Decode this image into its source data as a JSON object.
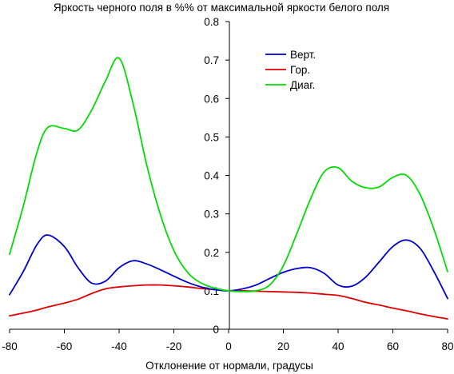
{
  "chart_data": {
    "type": "line",
    "title": "Яркость черного поля в %% от максимальной яркости белого поля",
    "xlabel": "Отклонение от нормали, градусы",
    "ylabel": "",
    "xlim": [
      -80,
      80
    ],
    "ylim": [
      0,
      0.8
    ],
    "xticks": [
      "-80",
      "-60",
      "-40",
      "-20",
      "0",
      "20",
      "40",
      "60",
      "80"
    ],
    "yticks": [
      "0",
      "0.1",
      "0.2",
      "0.3",
      "0.4",
      "0.5",
      "0.6",
      "0.7",
      "0.8"
    ],
    "grid": false,
    "legend_position": "top-right",
    "x": [
      -80,
      -75,
      -70,
      -66,
      -60,
      -55,
      -50,
      -45,
      -40,
      -35,
      -30,
      -25,
      -20,
      -15,
      -10,
      -5,
      0,
      5,
      10,
      15,
      20,
      25,
      30,
      35,
      40,
      45,
      50,
      55,
      60,
      65,
      70,
      75,
      80
    ],
    "series": [
      {
        "name": "Верт.",
        "color": "#0000cc",
        "values": [
          0.09,
          0.15,
          0.22,
          0.245,
          0.215,
          0.16,
          0.12,
          0.125,
          0.16,
          0.178,
          0.17,
          0.155,
          0.138,
          0.122,
          0.11,
          0.103,
          0.1,
          0.105,
          0.115,
          0.132,
          0.148,
          0.158,
          0.16,
          0.145,
          0.115,
          0.112,
          0.135,
          0.175,
          0.215,
          0.232,
          0.21,
          0.15,
          0.08
        ]
      },
      {
        "name": "Гор.",
        "color": "#dd0000",
        "values": [
          0.035,
          0.042,
          0.05,
          0.058,
          0.068,
          0.078,
          0.093,
          0.105,
          0.11,
          0.113,
          0.115,
          0.115,
          0.113,
          0.11,
          0.106,
          0.103,
          0.1,
          0.1,
          0.099,
          0.098,
          0.097,
          0.096,
          0.094,
          0.091,
          0.088,
          0.08,
          0.07,
          0.063,
          0.055,
          0.048,
          0.04,
          0.033,
          0.027
        ]
      },
      {
        "name": "Диаг.",
        "color": "#00dd00",
        "values": [
          0.195,
          0.32,
          0.46,
          0.525,
          0.522,
          0.518,
          0.57,
          0.645,
          0.705,
          0.59,
          0.43,
          0.3,
          0.205,
          0.148,
          0.12,
          0.107,
          0.1,
          0.098,
          0.1,
          0.115,
          0.165,
          0.25,
          0.34,
          0.41,
          0.42,
          0.385,
          0.368,
          0.37,
          0.395,
          0.4,
          0.35,
          0.26,
          0.15
        ]
      }
    ]
  }
}
